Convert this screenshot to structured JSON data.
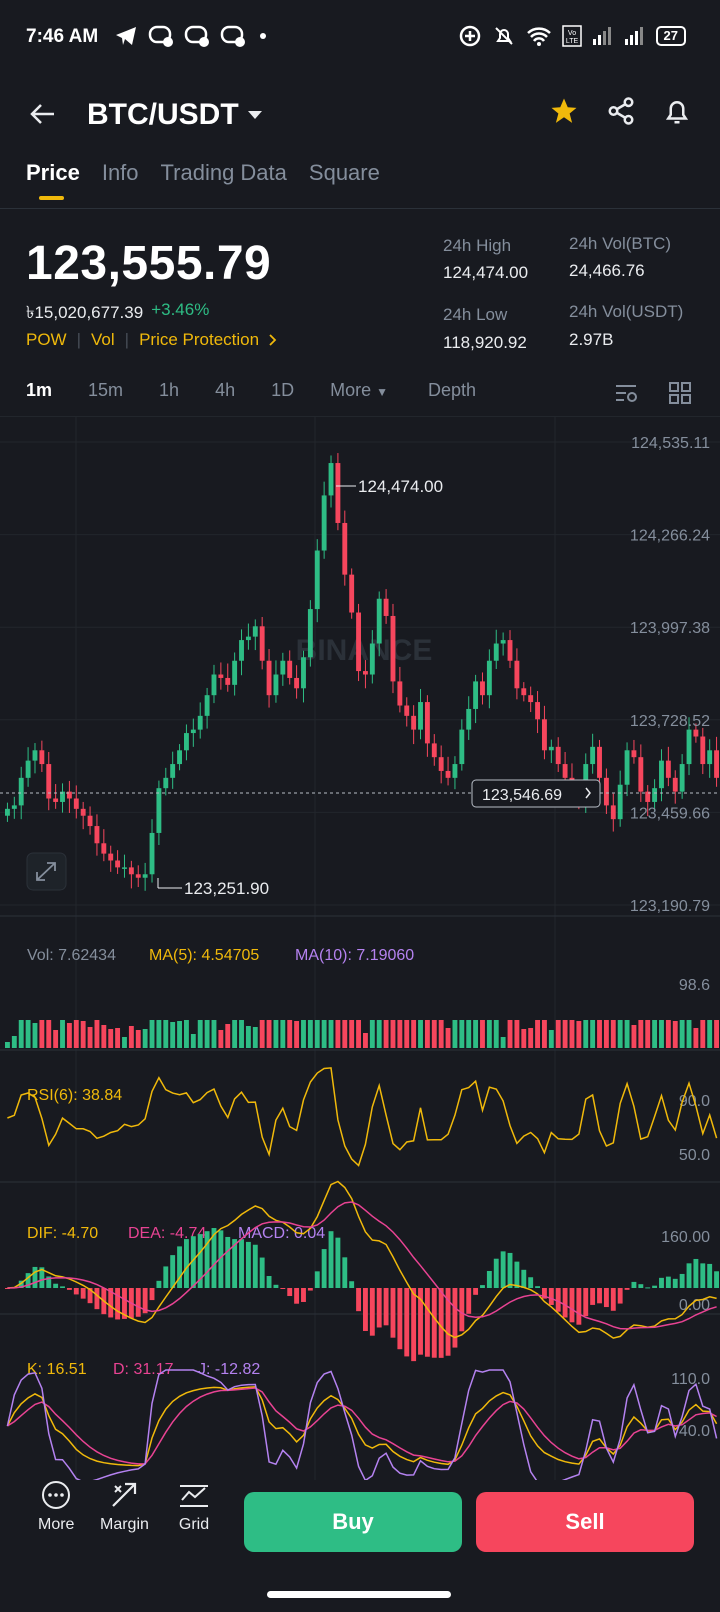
{
  "status_bar": {
    "time": "7:46 AM",
    "battery": "27"
  },
  "header": {
    "pair": "BTC/USDT"
  },
  "tabs": [
    "Price",
    "Info",
    "Trading Data",
    "Square"
  ],
  "ticker": {
    "price": "123,555.79",
    "fiat_price": "৳15,020,677.39",
    "change": "+3.46%",
    "tags": [
      "POW",
      "Vol",
      "Price Protection"
    ],
    "high_label": "24h High",
    "high": "124,474.00",
    "low_label": "24h Low",
    "low": "118,920.92",
    "vol_btc_label": "24h Vol(BTC)",
    "vol_btc": "24,466.76",
    "vol_usdt_label": "24h Vol(USDT)",
    "vol_usdt": "2.97B"
  },
  "timeframes": {
    "items": [
      "1m",
      "15m",
      "1h",
      "4h",
      "1D"
    ],
    "more": "More",
    "depth": "Depth"
  },
  "chart_data": [
    {
      "type": "candlestick",
      "title": "BTC/USDT 1m",
      "y_ticks": [
        "124,535.11",
        "124,266.24",
        "123,997.38",
        "123,728.52",
        "123,459.66",
        "123,190.79"
      ],
      "y_tick_values": [
        124535.11,
        124266.24,
        123997.38,
        123728.52,
        123459.66,
        123190.79
      ],
      "ylim": [
        123190.79,
        124535.11
      ],
      "high_marker": "124,474.00",
      "low_marker": "123,251.90",
      "last_price": "123,546.69",
      "watermark": "BINANCE",
      "closes": [
        123470,
        123480,
        123560,
        123610,
        123640,
        123600,
        123500,
        123490,
        123520,
        123500,
        123470,
        123450,
        123420,
        123370,
        123340,
        123320,
        123300,
        123300,
        123280,
        123270,
        123280,
        123400,
        123530,
        123560,
        123600,
        123640,
        123690,
        123700,
        123740,
        123800,
        123860,
        123850,
        123830,
        123900,
        123960,
        123970,
        124000,
        123900,
        123800,
        123860,
        123900,
        123850,
        123820,
        123910,
        124050,
        124220,
        124380,
        124474,
        124300,
        124150,
        124040,
        123870,
        123860,
        123950,
        124080,
        124030,
        123840,
        123770,
        123740,
        123700,
        123780,
        123660,
        123620,
        123580,
        123560,
        123600,
        123700,
        123760,
        123840,
        123800,
        123900,
        123950,
        123960,
        123900,
        123820,
        123800,
        123780,
        123730,
        123640,
        123650,
        123600,
        123560,
        123520,
        123500,
        123600,
        123650,
        123560,
        123480,
        123440,
        123540,
        123640,
        123620,
        123520,
        123490,
        123530,
        123610,
        123560,
        123520,
        123600,
        123700,
        123680,
        123600,
        123640,
        123560
      ]
    },
    {
      "type": "bar",
      "title": "Vol",
      "labels": [
        "Vol: 7.62434",
        "MA(5): 4.54705",
        "MA(10): 7.19060"
      ],
      "y_ticks": [
        "98.6"
      ],
      "ylim": [
        0,
        98.6
      ]
    },
    {
      "type": "line",
      "title": "RSI(6)",
      "labels": [
        "RSI(6): 38.84"
      ],
      "y_ticks": [
        "90.0",
        "50.0"
      ],
      "ylim": [
        0,
        100
      ]
    },
    {
      "type": "bar",
      "title": "MACD",
      "labels": [
        "DIF: -4.70",
        "DEA: -4.74",
        "MACD: 0.04"
      ],
      "y_ticks": [
        "160.00",
        "0.00"
      ]
    },
    {
      "type": "line",
      "title": "KDJ",
      "labels": [
        "K: 16.51",
        "D: 31.17",
        "J: -12.82"
      ],
      "y_ticks": [
        "110.0",
        "40.0"
      ]
    }
  ],
  "bottom_nav": {
    "more": "More",
    "margin": "Margin",
    "grid": "Grid",
    "buy": "Buy",
    "sell": "Sell"
  },
  "colors": {
    "up": "#2ebd85",
    "down": "#f6465d",
    "accent": "#f0b90b",
    "bg": "#181a20"
  }
}
